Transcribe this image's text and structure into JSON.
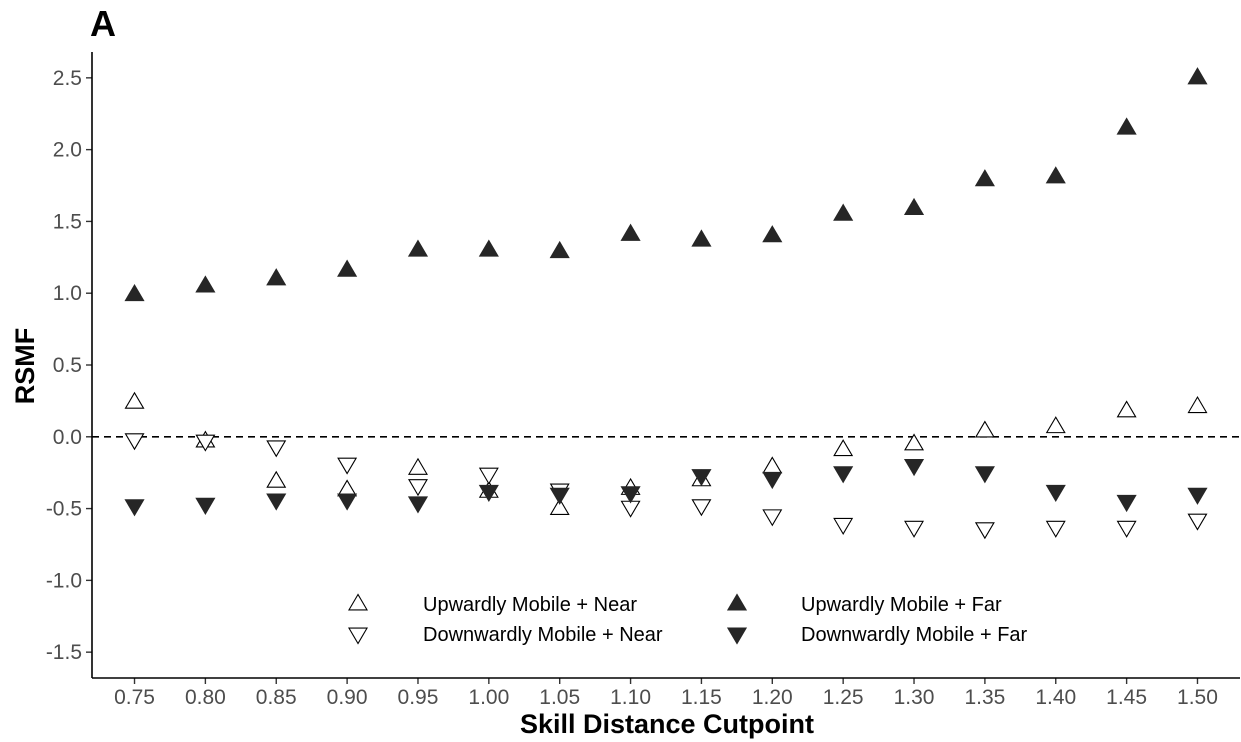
{
  "chart_data": {
    "type": "scatter",
    "panel_label": "A",
    "xlabel": "Skill Distance Cutpoint",
    "ylabel": "RSMF",
    "x": [
      0.75,
      0.8,
      0.85,
      0.9,
      0.95,
      1.0,
      1.05,
      1.1,
      1.15,
      1.2,
      1.25,
      1.3,
      1.35,
      1.4,
      1.45,
      1.5
    ],
    "x_tick_labels": [
      "0.75",
      "0.80",
      "0.85",
      "0.90",
      "0.95",
      "1.00",
      "1.05",
      "1.10",
      "1.15",
      "1.20",
      "1.25",
      "1.30",
      "1.35",
      "1.40",
      "1.45",
      "1.50"
    ],
    "y_ticks": [
      2.5,
      2.0,
      1.5,
      1.0,
      0.5,
      0.0,
      -0.5,
      -1.0,
      -1.5
    ],
    "y_tick_labels": [
      "2.5",
      "2.0",
      "1.5",
      "1.0",
      "0.5",
      "0.0",
      "-0.5",
      "-1.0",
      "-1.5"
    ],
    "xlim": [
      0.72,
      1.53
    ],
    "ylim": [
      -1.68,
      2.68
    ],
    "reference_line": {
      "y": 0.0,
      "style": "dashed"
    },
    "grid": false,
    "legend_position": "bottom-inside",
    "series": [
      {
        "name": "Upwardly Mobile + Near",
        "shape": "triangle-up",
        "filled": false,
        "values": [
          0.24,
          -0.03,
          -0.31,
          -0.37,
          -0.22,
          -0.38,
          -0.5,
          -0.36,
          -0.3,
          -0.21,
          -0.09,
          -0.05,
          0.04,
          0.07,
          0.18,
          0.21
        ]
      },
      {
        "name": "Upwardly Mobile + Far",
        "shape": "triangle-up",
        "filled": true,
        "values": [
          0.99,
          1.05,
          1.1,
          1.16,
          1.3,
          1.3,
          1.29,
          1.41,
          1.37,
          1.4,
          1.55,
          1.59,
          1.79,
          1.81,
          2.15,
          2.5
        ]
      },
      {
        "name": "Downwardly Mobile + Near",
        "shape": "triangle-down",
        "filled": false,
        "values": [
          -0.02,
          -0.03,
          -0.07,
          -0.19,
          -0.34,
          -0.26,
          -0.37,
          -0.49,
          -0.48,
          -0.55,
          -0.61,
          -0.63,
          -0.64,
          -0.63,
          -0.63,
          -0.58
        ]
      },
      {
        "name": "Downwardly Mobile + Far",
        "shape": "triangle-down",
        "filled": true,
        "values": [
          -0.48,
          -0.47,
          -0.44,
          -0.44,
          -0.46,
          -0.38,
          -0.4,
          -0.39,
          -0.27,
          -0.29,
          -0.25,
          -0.2,
          -0.25,
          -0.38,
          -0.45,
          -0.4
        ]
      }
    ],
    "legend_rows": [
      [
        "Upwardly Mobile + Near",
        "Upwardly Mobile + Far"
      ],
      [
        "Downwardly Mobile + Near",
        "Downwardly Mobile + Far"
      ]
    ],
    "colors": {
      "filled": "#262626",
      "hollow_stroke": "#000000",
      "axis": "#000000",
      "tick_text": "#4d4d4d"
    }
  }
}
